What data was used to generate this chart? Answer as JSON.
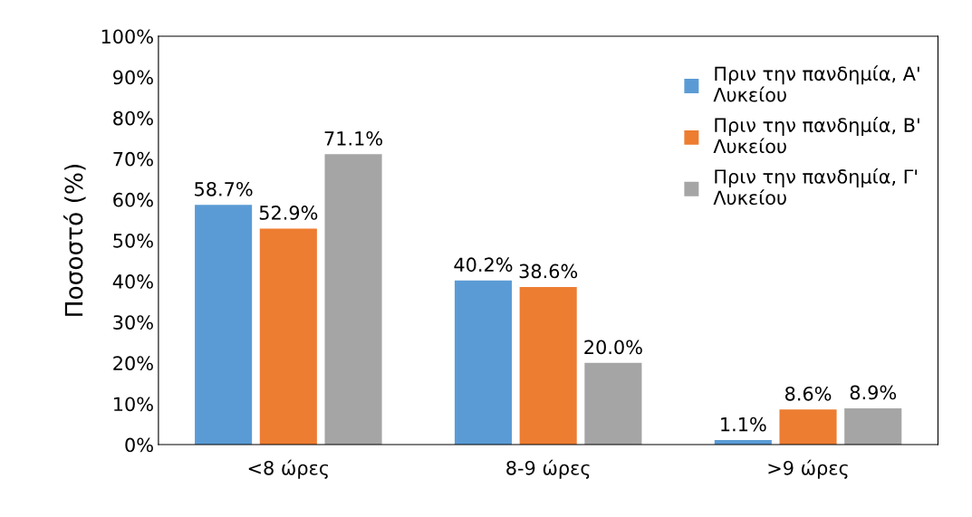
{
  "chart_data": {
    "type": "bar",
    "ylabel": "Ποσοστό (%)",
    "categories": [
      "<8 ώρες",
      "8-9 ώρες",
      ">9 ώρες"
    ],
    "series": [
      {
        "name": "Πριν την πανδημία, Α' Λυκείου",
        "color": "#5b9bd5",
        "values": [
          58.7,
          40.2,
          1.1
        ],
        "value_labels": [
          "58.7%",
          "40.2%",
          "1.1%"
        ]
      },
      {
        "name": "Πριν την πανδημία, Β' Λυκείου",
        "color": "#ed7d31",
        "values": [
          52.9,
          38.6,
          8.6
        ],
        "value_labels": [
          "52.9%",
          "38.6%",
          "8.6%"
        ]
      },
      {
        "name": "Πριν την πανδημία, Γ' Λυκείου",
        "color": "#a5a5a5",
        "values": [
          71.1,
          20.0,
          8.9
        ],
        "value_labels": [
          "71.1%",
          "20.0%",
          "8.9%"
        ]
      }
    ],
    "ylim": [
      0,
      100
    ],
    "yticks": [
      {
        "value": 0,
        "label": "0%"
      },
      {
        "value": 10,
        "label": "10%"
      },
      {
        "value": 20,
        "label": "20%"
      },
      {
        "value": 30,
        "label": "30%"
      },
      {
        "value": 40,
        "label": "40%"
      },
      {
        "value": 50,
        "label": "50%"
      },
      {
        "value": 60,
        "label": "60%"
      },
      {
        "value": 70,
        "label": "70%"
      },
      {
        "value": 80,
        "label": "80%"
      },
      {
        "value": 90,
        "label": "90%"
      },
      {
        "value": 100,
        "label": "100%"
      }
    ],
    "grid": false,
    "legend": "top right"
  }
}
